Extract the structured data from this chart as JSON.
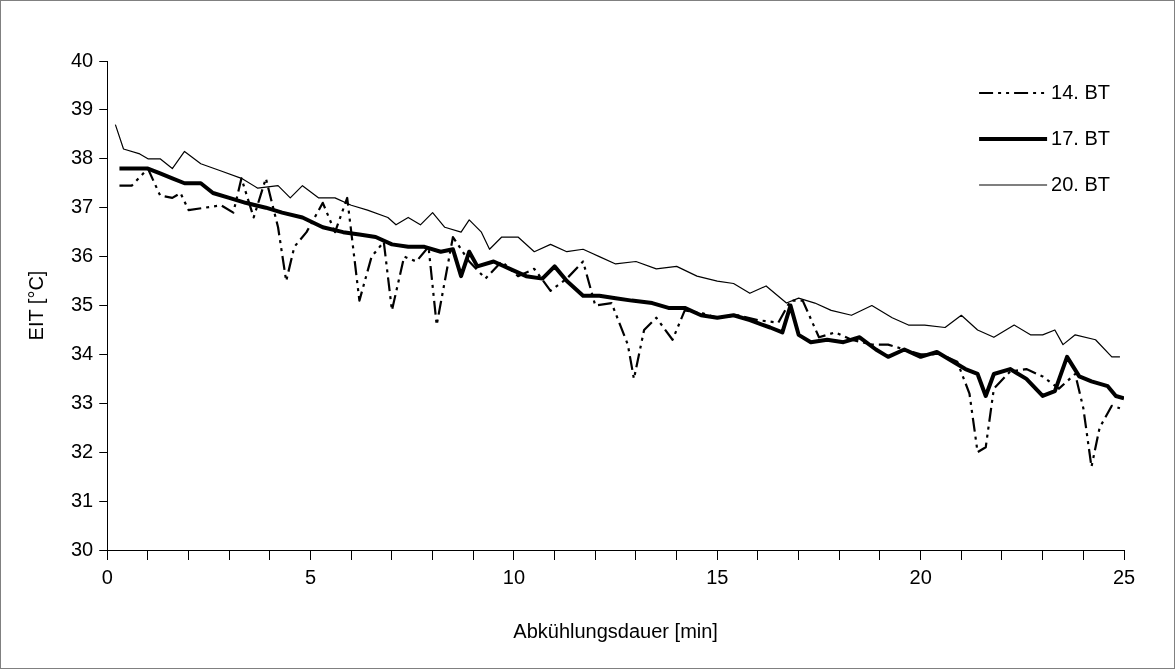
{
  "chart_data": {
    "type": "line",
    "xlabel": "Abkühlungsdauer [min]",
    "ylabel": "EIT [°C]",
    "xlim": [
      0,
      25
    ],
    "ylim": [
      30,
      40
    ],
    "xticks": [
      0,
      {
        "value": 1,
        "label": null
      },
      {
        "value": 2,
        "label": null
      },
      {
        "value": 3,
        "label": null
      },
      {
        "value": 4,
        "label": null
      },
      5,
      {
        "value": 6,
        "label": null
      },
      {
        "value": 7,
        "label": null
      },
      {
        "value": 8,
        "label": null
      },
      {
        "value": 9,
        "label": null
      },
      10,
      {
        "value": 11,
        "label": null
      },
      {
        "value": 12,
        "label": null
      },
      {
        "value": 13,
        "label": null
      },
      {
        "value": 14,
        "label": null
      },
      15,
      {
        "value": 16,
        "label": null
      },
      {
        "value": 17,
        "label": null
      },
      {
        "value": 18,
        "label": null
      },
      {
        "value": 19,
        "label": null
      },
      20,
      {
        "value": 21,
        "label": null
      },
      {
        "value": 22,
        "label": null
      },
      {
        "value": 23,
        "label": null
      },
      {
        "value": 24,
        "label": null
      },
      25
    ],
    "yticks": [
      30,
      31,
      32,
      33,
      34,
      35,
      36,
      37,
      38,
      39,
      40
    ],
    "legend": "top right",
    "marker": "none",
    "series": [
      {
        "name": "14. BT",
        "color": "#000000",
        "line_style": "dashed",
        "x": [
          0.3,
          0.6,
          1.0,
          1.3,
          1.6,
          1.8,
          2.0,
          2.4,
          2.8,
          3.1,
          3.3,
          3.6,
          3.9,
          4.2,
          4.4,
          4.6,
          4.9,
          5.3,
          5.6,
          5.9,
          6.2,
          6.5,
          6.8,
          7.0,
          7.3,
          7.6,
          7.9,
          8.1,
          8.5,
          8.9,
          9.3,
          9.7,
          10.1,
          10.5,
          10.9,
          11.3,
          11.7,
          12.0,
          12.4,
          12.8,
          12.95,
          13.2,
          13.5,
          13.9,
          14.2,
          14.6,
          15.0,
          15.5,
          16.0,
          16.5,
          16.8,
          17.1,
          17.5,
          17.9,
          18.3,
          18.8,
          19.2,
          19.6,
          20.0,
          20.5,
          20.9,
          21.2,
          21.4,
          21.6,
          21.8,
          22.2,
          22.6,
          23.0,
          23.4,
          23.8,
          24.0,
          24.2,
          24.4,
          24.7,
          24.9
        ],
        "values": [
          37.45,
          37.45,
          37.8,
          37.25,
          37.2,
          37.3,
          36.95,
          37.0,
          37.05,
          36.9,
          37.6,
          36.8,
          37.6,
          36.6,
          35.5,
          36.2,
          36.5,
          37.1,
          36.5,
          37.2,
          35.1,
          36.0,
          36.3,
          34.9,
          36.0,
          35.9,
          36.2,
          34.6,
          36.4,
          35.9,
          35.55,
          35.9,
          35.6,
          35.75,
          35.3,
          35.55,
          35.9,
          35.0,
          35.05,
          34.2,
          33.5,
          34.5,
          34.75,
          34.3,
          34.9,
          34.85,
          34.75,
          34.8,
          34.7,
          34.65,
          35.1,
          35.1,
          34.35,
          34.45,
          34.3,
          34.2,
          34.2,
          34.1,
          34.0,
          34.0,
          33.85,
          33.2,
          32.0,
          32.1,
          33.3,
          33.65,
          33.7,
          33.55,
          33.3,
          33.6,
          32.9,
          31.7,
          32.5,
          32.95,
          32.9
        ]
      },
      {
        "name": "17. BT",
        "color": "#000000",
        "line_style": "solid",
        "x": [
          0.3,
          1.0,
          1.3,
          1.6,
          1.9,
          2.3,
          2.6,
          3.0,
          3.4,
          3.9,
          4.3,
          4.8,
          5.3,
          5.8,
          6.2,
          6.6,
          7.0,
          7.4,
          7.8,
          8.2,
          8.5,
          8.7,
          8.9,
          9.1,
          9.5,
          9.9,
          10.3,
          10.7,
          11.0,
          11.3,
          11.7,
          12.1,
          12.5,
          12.9,
          13.4,
          13.8,
          14.2,
          14.6,
          15.0,
          15.4,
          15.8,
          16.3,
          16.6,
          16.8,
          17.0,
          17.3,
          17.7,
          18.1,
          18.5,
          18.9,
          19.2,
          19.6,
          20.0,
          20.4,
          20.8,
          21.1,
          21.4,
          21.6,
          21.8,
          22.2,
          22.6,
          23.0,
          23.3,
          23.6,
          23.9,
          24.2,
          24.6,
          24.8,
          25.0
        ],
        "values": [
          37.8,
          37.8,
          37.7,
          37.6,
          37.5,
          37.5,
          37.3,
          37.2,
          37.1,
          37.0,
          36.9,
          36.8,
          36.6,
          36.5,
          36.45,
          36.4,
          36.25,
          36.2,
          36.2,
          36.1,
          36.15,
          35.6,
          36.1,
          35.8,
          35.9,
          35.75,
          35.6,
          35.55,
          35.8,
          35.5,
          35.2,
          35.2,
          35.15,
          35.1,
          35.05,
          34.95,
          34.95,
          34.8,
          34.75,
          34.8,
          34.7,
          34.55,
          34.45,
          35.0,
          34.4,
          34.25,
          34.3,
          34.25,
          34.35,
          34.1,
          33.95,
          34.1,
          33.95,
          34.05,
          33.85,
          33.7,
          33.6,
          33.15,
          33.6,
          33.7,
          33.5,
          33.15,
          33.25,
          33.95,
          33.55,
          33.45,
          33.35,
          33.15,
          33.1
        ]
      },
      {
        "name": "20. BT",
        "color": "#000000",
        "line_style": "solid",
        "x": [
          0.2,
          0.4,
          0.8,
          1.0,
          1.3,
          1.6,
          1.9,
          2.3,
          2.8,
          3.3,
          3.7,
          4.2,
          4.5,
          4.8,
          5.2,
          5.6,
          6.0,
          6.4,
          6.9,
          7.1,
          7.4,
          7.7,
          8.0,
          8.3,
          8.7,
          8.9,
          9.2,
          9.4,
          9.7,
          10.1,
          10.5,
          10.9,
          11.3,
          11.7,
          12.1,
          12.5,
          13.0,
          13.5,
          14.0,
          14.5,
          15.0,
          15.4,
          15.8,
          16.2,
          16.7,
          17.0,
          17.4,
          17.8,
          18.3,
          18.8,
          19.3,
          19.7,
          20.1,
          20.6,
          21.0,
          21.4,
          21.8,
          22.3,
          22.7,
          23.0,
          23.3,
          23.5,
          23.8,
          24.3,
          24.7,
          24.9
        ],
        "values": [
          38.7,
          38.2,
          38.1,
          38.0,
          38.0,
          37.8,
          38.15,
          37.9,
          37.75,
          37.6,
          37.4,
          37.45,
          37.2,
          37.45,
          37.2,
          37.2,
          37.05,
          36.95,
          36.8,
          36.65,
          36.8,
          36.65,
          36.9,
          36.6,
          36.5,
          36.75,
          36.5,
          36.15,
          36.4,
          36.4,
          36.1,
          36.25,
          36.1,
          36.15,
          36.0,
          35.85,
          35.9,
          35.75,
          35.8,
          35.6,
          35.5,
          35.45,
          35.25,
          35.4,
          35.05,
          35.15,
          35.05,
          34.9,
          34.8,
          35.0,
          34.75,
          34.6,
          34.6,
          34.55,
          34.8,
          34.5,
          34.35,
          34.6,
          34.4,
          34.4,
          34.5,
          34.2,
          34.4,
          34.3,
          33.95,
          33.95
        ]
      }
    ]
  }
}
